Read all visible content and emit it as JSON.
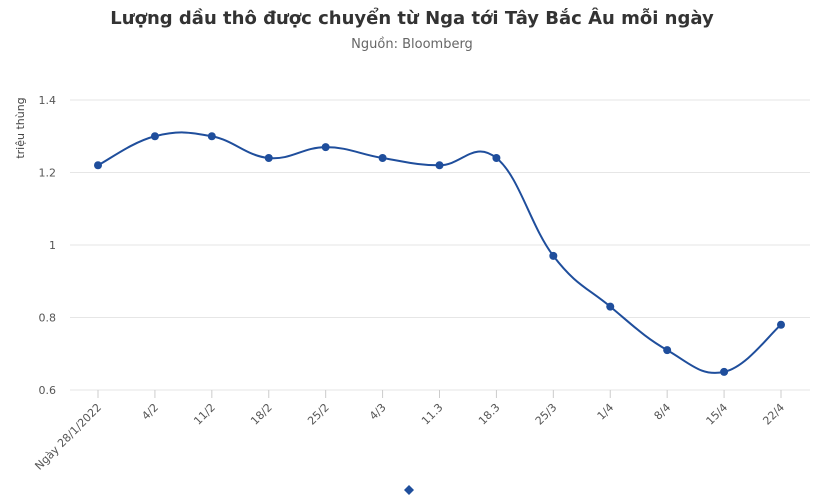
{
  "title": "Lượng dầu thô được chuyển từ Nga tới Tây Bắc Âu mỗi ngày",
  "subtitle": "Nguồn: Bloomberg",
  "colors": {
    "series": "#1f4e9c",
    "grid": "#e6e6e6",
    "text": "#555555"
  },
  "chart_data": {
    "type": "line",
    "title": "Lượng dầu thô được chuyển từ Nga tới Tây Bắc Âu mỗi ngày",
    "subtitle": "Nguồn: Bloomberg",
    "xlabel": "",
    "ylabel": "triệu thùng",
    "ylim": [
      0.6,
      1.4
    ],
    "yticks": [
      "0.6",
      "0.8",
      "1",
      "1.2",
      "1.4"
    ],
    "grid": true,
    "categories": [
      "Ngày 28/1/2022",
      "4/2",
      "11/2",
      "18/2",
      "25/2",
      "4/3",
      "11.3",
      "18.3",
      "25/3",
      "1/4",
      "8/4",
      "15/4",
      "22/4"
    ],
    "series": [
      {
        "values": [
          1.22,
          1.3,
          1.3,
          1.24,
          1.27,
          1.24,
          1.22,
          1.24,
          0.97,
          0.83,
          0.71,
          0.65,
          0.78
        ]
      }
    ],
    "legend": "bottom-center"
  }
}
